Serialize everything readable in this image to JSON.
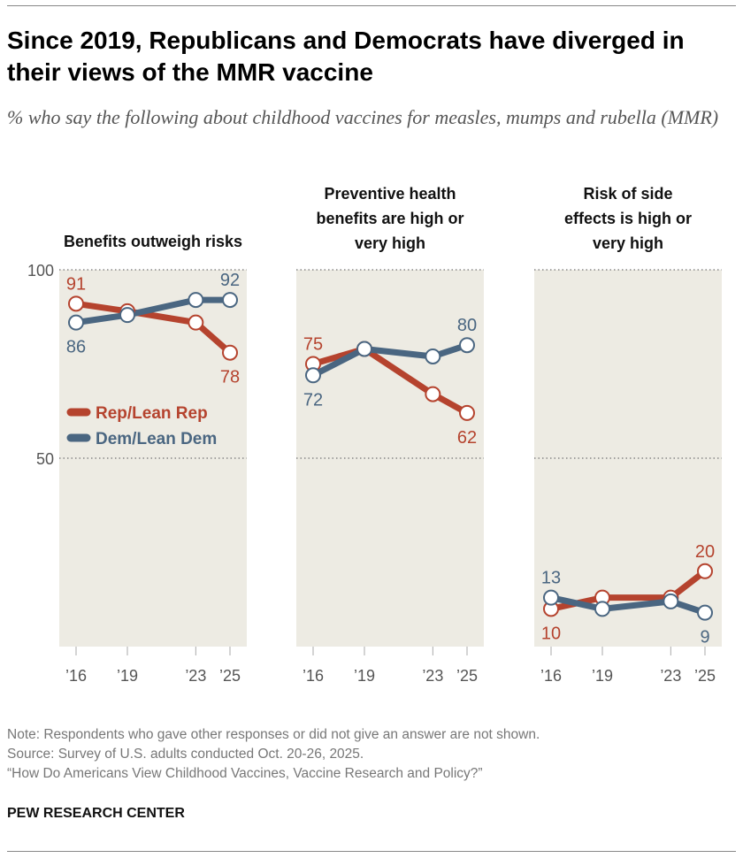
{
  "title": "Since 2019, Republicans and Democrats have diverged in their views of the MMR vaccine",
  "subtitle": "% who say the following about childhood vaccines for measles, mumps and rubella (MMR)",
  "notes": [
    "Note: Respondents who gave other responses or did not give an answer are not shown.",
    "Source: Survey of U.S. adults conducted Oct. 20-26, 2025.",
    "“How Do Americans View Childhood Vaccines, Vaccine Research and Policy?”"
  ],
  "brand": "PEW RESEARCH CENTER",
  "colors": {
    "rep": "#B5432E",
    "dem": "#4A6681",
    "panel_bg": "#EDEBE3"
  },
  "chart_data": [
    {
      "type": "line",
      "title": [
        "Benefits outweigh risks"
      ],
      "x": [
        2016,
        2019,
        2023,
        2025
      ],
      "xticks": [
        "’16",
        "’19",
        "’23",
        "’25"
      ],
      "ylim": [
        0,
        100
      ],
      "yticks": [
        "100",
        "50"
      ],
      "legend": "inside-left",
      "series": [
        {
          "name": "Rep/Lean Rep",
          "values": [
            91,
            89,
            86,
            78
          ],
          "labels": [
            "91",
            null,
            null,
            "78"
          ]
        },
        {
          "name": "Dem/Lean Dem",
          "values": [
            86,
            88,
            92,
            92
          ],
          "labels": [
            "86",
            null,
            null,
            "92"
          ]
        }
      ]
    },
    {
      "type": "line",
      "title": [
        "Preventive health",
        "benefits are high or",
        "very high"
      ],
      "x": [
        2016,
        2019,
        2023,
        2025
      ],
      "xticks": [
        "’16",
        "’19",
        "’23",
        "’25"
      ],
      "ylim": [
        0,
        100
      ],
      "series": [
        {
          "name": "Rep/Lean Rep",
          "values": [
            75,
            79,
            67,
            62
          ],
          "labels": [
            "75",
            null,
            null,
            "62"
          ]
        },
        {
          "name": "Dem/Lean Dem",
          "values": [
            72,
            79,
            77,
            80
          ],
          "labels": [
            "72",
            null,
            null,
            "80"
          ]
        }
      ]
    },
    {
      "type": "line",
      "title": [
        "Risk of side",
        "effects is high or",
        "very high"
      ],
      "x": [
        2016,
        2019,
        2023,
        2025
      ],
      "xticks": [
        "’16",
        "’19",
        "’23",
        "’25"
      ],
      "ylim": [
        0,
        100
      ],
      "series": [
        {
          "name": "Rep/Lean Rep",
          "values": [
            10,
            13,
            13,
            20
          ],
          "labels": [
            "10",
            null,
            null,
            "20"
          ]
        },
        {
          "name": "Dem/Lean Dem",
          "values": [
            13,
            10,
            12,
            9
          ],
          "labels": [
            "13",
            null,
            null,
            "9"
          ]
        }
      ]
    }
  ]
}
